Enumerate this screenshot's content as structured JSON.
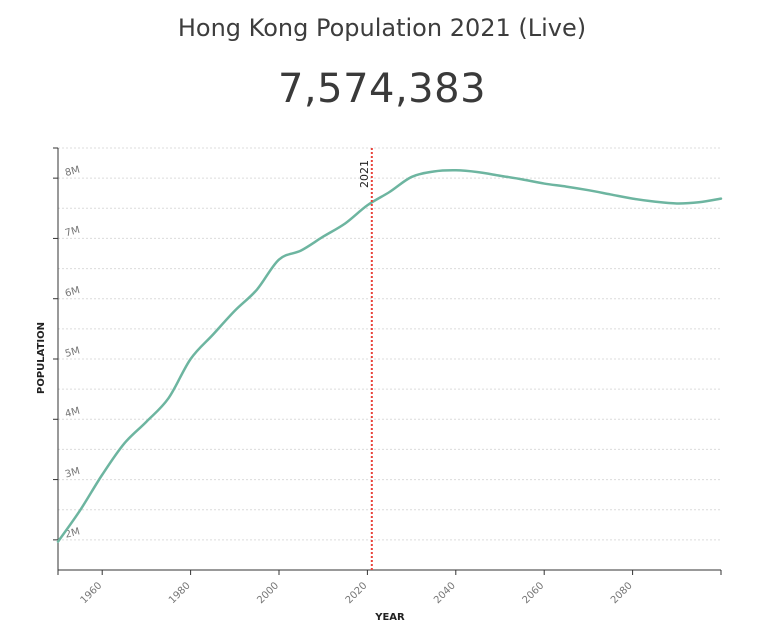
{
  "header": {
    "title": "Hong Kong Population 2021 (Live)",
    "live_count": "7,574,383"
  },
  "chart_data": {
    "type": "line",
    "title": "Hong Kong Population 2021 (Live)",
    "xlabel": "YEAR",
    "ylabel": "POPULATION",
    "xlim": [
      1950,
      2100
    ],
    "ylim": [
      1500000,
      8500000
    ],
    "x_ticks": [
      1960,
      1980,
      2000,
      2020,
      2040,
      2060,
      2080
    ],
    "x_tick_labels": [
      "1960",
      "1980",
      "2000",
      "2020",
      "2040",
      "2060",
      "2080"
    ],
    "y_ticks": [
      2000000,
      3000000,
      4000000,
      5000000,
      6000000,
      7000000,
      8000000
    ],
    "y_tick_labels": [
      "2M",
      "3M",
      "4M",
      "5M",
      "6M",
      "7M",
      "8M"
    ],
    "grid": true,
    "line_color": "#6db5a0",
    "marker": {
      "year": 2021,
      "label": "2021",
      "color": "#e8433a"
    },
    "series": [
      {
        "name": "Population",
        "x": [
          1950,
          1955,
          1960,
          1965,
          1970,
          1975,
          1980,
          1985,
          1990,
          1995,
          2000,
          2005,
          2010,
          2015,
          2020,
          2025,
          2030,
          2035,
          2040,
          2045,
          2050,
          2055,
          2060,
          2065,
          2070,
          2075,
          2080,
          2085,
          2090,
          2095,
          2100
        ],
        "y": [
          1970000,
          2490000,
          3080000,
          3600000,
          3960000,
          4350000,
          5000000,
          5400000,
          5800000,
          6150000,
          6650000,
          6800000,
          7030000,
          7250000,
          7550000,
          7770000,
          8020000,
          8110000,
          8130000,
          8100000,
          8040000,
          7980000,
          7910000,
          7860000,
          7800000,
          7730000,
          7660000,
          7610000,
          7580000,
          7600000,
          7660000
        ]
      }
    ]
  }
}
